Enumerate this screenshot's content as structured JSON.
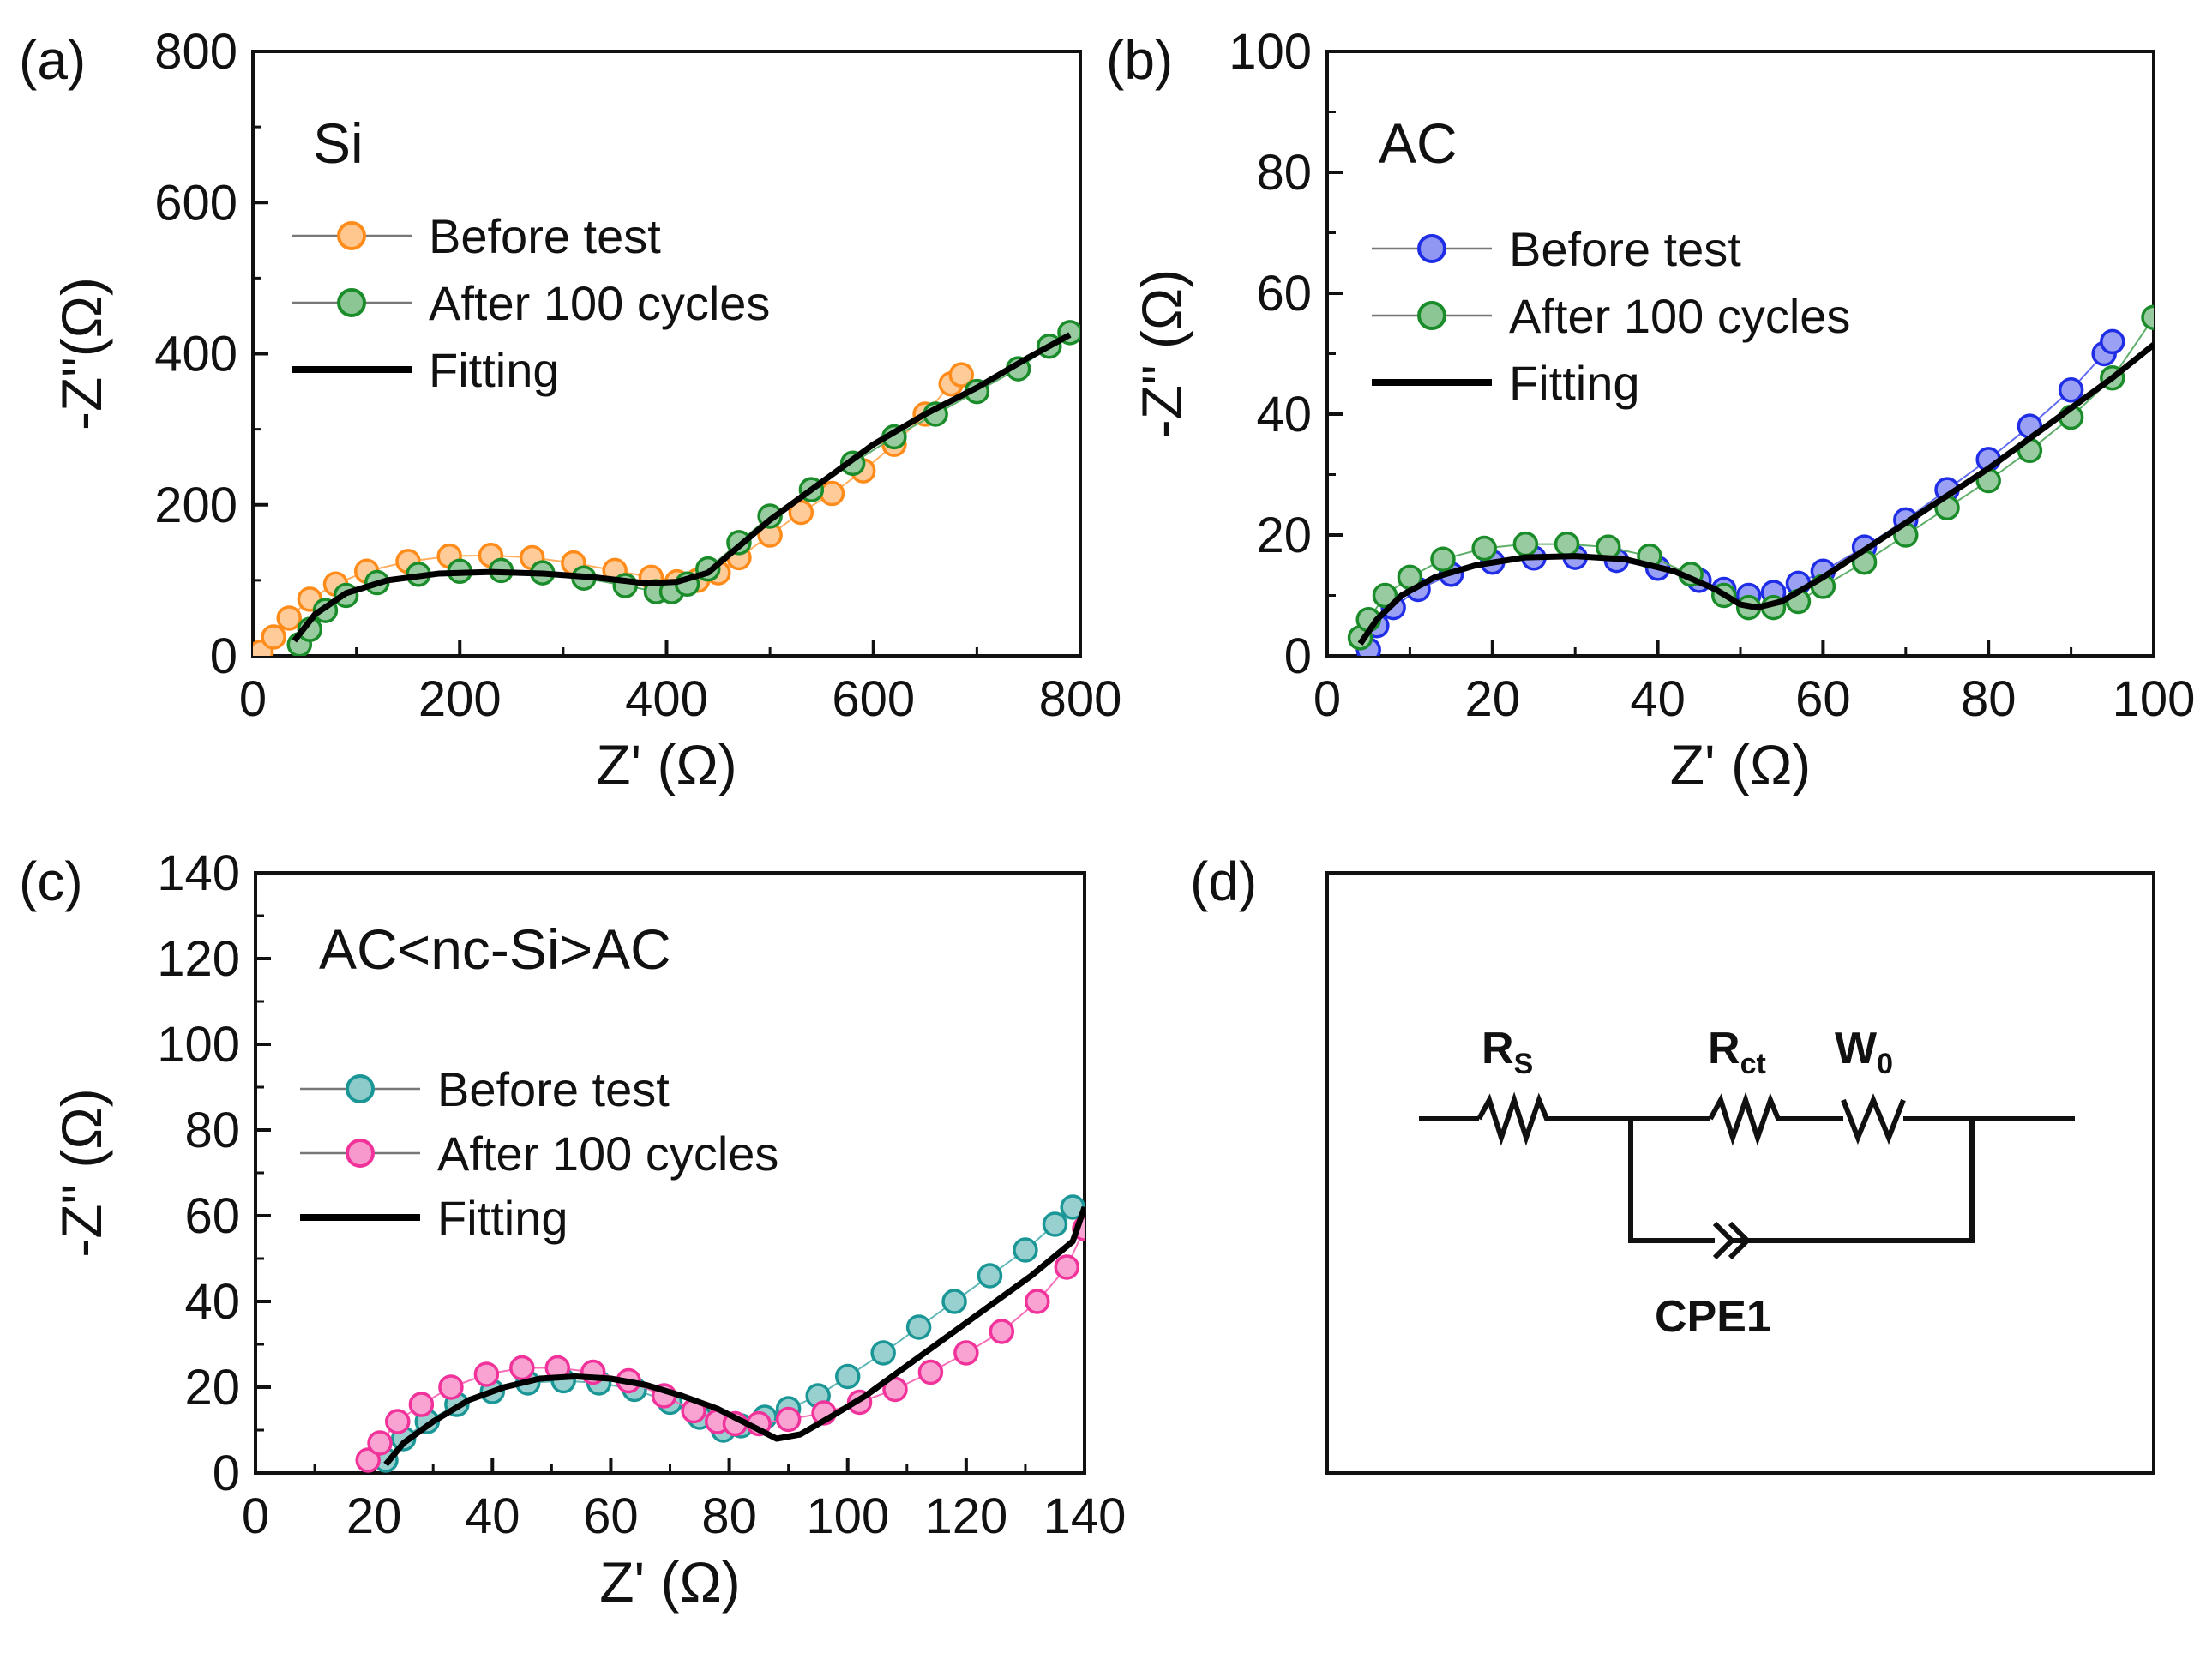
{
  "figure": {
    "description_tags": [
      "(a)",
      "(b)",
      "(c)",
      "(d)"
    ]
  },
  "chart_data": [
    {
      "type": "scatter",
      "tag": "(a)",
      "title": "Si",
      "xlabel": "Z' (Ω)",
      "ylabel": "-Z\"(Ω)",
      "xlim": [
        0,
        800
      ],
      "ylim": [
        0,
        800
      ],
      "xticks": [
        0,
        200,
        400,
        600,
        800
      ],
      "yticks": [
        0,
        200,
        400,
        600,
        800
      ],
      "grid": false,
      "legend_position": "upper-left",
      "legend": [
        "Before test",
        "After 100 cycles",
        "Fitting"
      ],
      "series": [
        {
          "name": "Before test",
          "color": "#ff8c1a",
          "style": "markers",
          "x": [
            8,
            20,
            35,
            55,
            80,
            110,
            150,
            190,
            230,
            270,
            310,
            350,
            385,
            410,
            430,
            450,
            470,
            500,
            530,
            560,
            590,
            620,
            650,
            675,
            685
          ],
          "y": [
            5,
            25,
            50,
            75,
            95,
            112,
            125,
            132,
            133,
            130,
            123,
            113,
            104,
            98,
            100,
            110,
            130,
            160,
            190,
            215,
            245,
            280,
            320,
            360,
            372
          ]
        },
        {
          "name": "After 100 cycles",
          "color": "#1a8c2a",
          "style": "markers",
          "x": [
            45,
            55,
            70,
            90,
            120,
            160,
            200,
            240,
            280,
            320,
            360,
            390,
            405,
            420,
            440,
            470,
            500,
            540,
            580,
            620,
            660,
            700,
            740,
            770,
            790
          ],
          "y": [
            15,
            35,
            60,
            80,
            97,
            108,
            112,
            113,
            110,
            103,
            93,
            85,
            85,
            95,
            115,
            150,
            185,
            220,
            255,
            290,
            320,
            350,
            380,
            410,
            428
          ]
        },
        {
          "name": "Fitting",
          "color": "#000000",
          "style": "line",
          "x": [
            40,
            60,
            90,
            130,
            180,
            230,
            280,
            330,
            380,
            410,
            440,
            470,
            500,
            550,
            600,
            650,
            700,
            750,
            790
          ],
          "y": [
            20,
            55,
            83,
            100,
            109,
            111,
            109,
            104,
            96,
            98,
            110,
            145,
            180,
            230,
            280,
            320,
            355,
            395,
            425
          ]
        }
      ]
    },
    {
      "type": "scatter",
      "tag": "(b)",
      "title": "AC",
      "xlabel": "Z' (Ω)",
      "ylabel": "-Z\" (Ω)",
      "xlim": [
        0,
        100
      ],
      "ylim": [
        0,
        100
      ],
      "xticks": [
        0,
        20,
        40,
        60,
        80,
        100
      ],
      "yticks": [
        0,
        20,
        40,
        60,
        80,
        100
      ],
      "grid": false,
      "legend_position": "upper-left",
      "legend": [
        "Before test",
        "After 100 cycles",
        "Fitting"
      ],
      "series": [
        {
          "name": "Before test",
          "color": "#1f2ee6",
          "style": "markers",
          "x": [
            5,
            6,
            8,
            11,
            15,
            20,
            25,
            30,
            35,
            40,
            45,
            48,
            51,
            54,
            57,
            60,
            65,
            70,
            75,
            80,
            85,
            90,
            94,
            95
          ],
          "y": [
            1,
            5,
            8,
            11,
            13.5,
            15.5,
            16.2,
            16.3,
            15.8,
            14.5,
            12.5,
            11,
            10,
            10.5,
            12,
            14,
            18,
            22.5,
            27.5,
            32.5,
            38,
            44,
            50,
            52
          ]
        },
        {
          "name": "After 100 cycles",
          "color": "#1a8c2a",
          "style": "markers",
          "x": [
            4,
            5,
            7,
            10,
            14,
            19,
            24,
            29,
            34,
            39,
            44,
            48,
            51,
            54,
            57,
            60,
            65,
            70,
            75,
            80,
            85,
            90,
            95,
            100
          ],
          "y": [
            3,
            6,
            10,
            13,
            16,
            17.8,
            18.5,
            18.5,
            18,
            16.5,
            13.5,
            10,
            8,
            8,
            9,
            11.5,
            15.5,
            20,
            24.5,
            29,
            34,
            39.5,
            46,
            56
          ]
        },
        {
          "name": "Fitting",
          "color": "#000000",
          "style": "line",
          "x": [
            4,
            6,
            9,
            13,
            18,
            24,
            30,
            36,
            42,
            47,
            50,
            52,
            55,
            60,
            65,
            70,
            75,
            80,
            85,
            90,
            95,
            100
          ],
          "y": [
            2,
            6,
            10,
            13,
            15,
            16.3,
            16.5,
            16,
            14,
            11,
            8.5,
            8,
            9,
            13,
            17.5,
            22,
            26.5,
            31,
            36,
            41,
            46,
            51.5
          ]
        }
      ]
    },
    {
      "type": "scatter",
      "tag": "(c)",
      "title": "AC<nc-Si>AC",
      "xlabel": "Z' (Ω)",
      "ylabel": "-Z\" (Ω)",
      "xlim": [
        0,
        140
      ],
      "ylim": [
        0,
        140
      ],
      "xticks": [
        0,
        20,
        40,
        60,
        80,
        100,
        120,
        140
      ],
      "yticks": [
        0,
        20,
        40,
        60,
        80,
        100,
        120,
        140
      ],
      "grid": false,
      "legend_position": "upper-left",
      "legend": [
        "Before test",
        "After 100 cycles",
        "Fitting"
      ],
      "series": [
        {
          "name": "Before test",
          "color": "#1a9696",
          "style": "markers",
          "x": [
            22,
            25,
            29,
            34,
            40,
            46,
            52,
            58,
            64,
            70,
            75,
            79,
            82,
            86,
            90,
            95,
            100,
            106,
            112,
            118,
            124,
            130,
            135,
            138
          ],
          "y": [
            3,
            8,
            12,
            16,
            19,
            21,
            21.5,
            21,
            19.5,
            16.5,
            13,
            10,
            11,
            13,
            15,
            18,
            22.5,
            28,
            34,
            40,
            46,
            52,
            58,
            62
          ]
        },
        {
          "name": "After 100 cycles",
          "color": "#f0329a",
          "style": "markers",
          "x": [
            19,
            21,
            24,
            28,
            33,
            39,
            45,
            51,
            57,
            63,
            69,
            74,
            78,
            81,
            85,
            90,
            96,
            102,
            108,
            114,
            120,
            126,
            132,
            137,
            140
          ],
          "y": [
            3,
            7,
            12,
            16,
            20,
            23,
            24.5,
            24.5,
            23.5,
            21.5,
            18,
            14.5,
            12,
            11.5,
            11.5,
            12.5,
            14,
            16.5,
            19.5,
            23.5,
            28,
            33,
            40,
            48,
            57
          ]
        },
        {
          "name": "Fitting",
          "color": "#000000",
          "style": "line",
          "x": [
            22,
            25,
            30,
            36,
            42,
            48,
            54,
            60,
            66,
            72,
            78,
            83,
            88,
            92,
            97,
            103,
            110,
            117,
            124,
            131,
            138,
            140
          ],
          "y": [
            2,
            7,
            12,
            17,
            20,
            22,
            22.5,
            22,
            20.5,
            18,
            15,
            11.5,
            8,
            9,
            13,
            18,
            25,
            32,
            39,
            46,
            54,
            62
          ]
        }
      ]
    }
  ],
  "circuit": {
    "tag": "(d)",
    "rs_main": "R",
    "rs_sub": "S",
    "rct_main": "R",
    "rct_sub": "ct",
    "w_main": "W",
    "w_sub": "0",
    "cpe": "CPE1"
  }
}
